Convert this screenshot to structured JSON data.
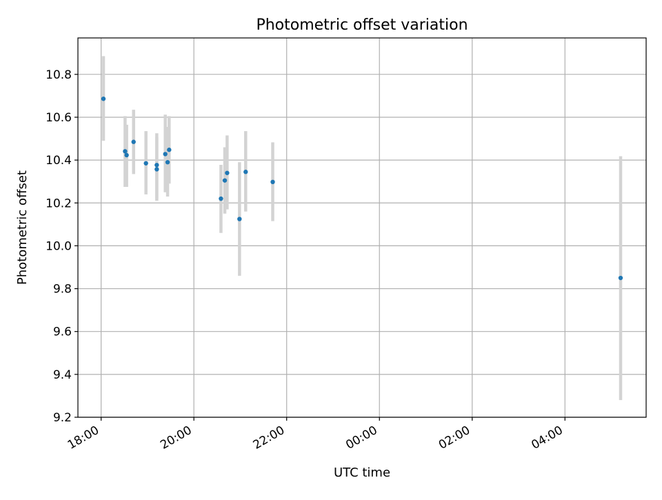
{
  "chart_data": {
    "type": "scatter",
    "title": "Photometric offset variation",
    "xlabel": "UTC time",
    "ylabel": "Photometric offset",
    "x_axis_type": "time",
    "xlim": [
      "17:30",
      "05:45"
    ],
    "ylim": [
      9.2,
      10.97
    ],
    "x_ticks": [
      "18:00",
      "20:00",
      "22:00",
      "00:00",
      "02:00",
      "04:00"
    ],
    "y_ticks": [
      9.2,
      9.4,
      9.6,
      9.8,
      10.0,
      10.2,
      10.4,
      10.6,
      10.8
    ],
    "grid": true,
    "colors": {
      "marker": "#1f77b4",
      "errorbar": "#d3d3d3",
      "grid": "#b0b0b0",
      "axes": "#000000"
    },
    "points": [
      {
        "x": "18:03",
        "y": 10.686,
        "yerr_low": 10.49,
        "yerr_high": 10.885
      },
      {
        "x": "18:31",
        "y": 10.441,
        "yerr_low": 10.275,
        "yerr_high": 10.605
      },
      {
        "x": "18:33",
        "y": 10.423,
        "yerr_low": 10.275,
        "yerr_high": 10.565
      },
      {
        "x": "18:42",
        "y": 10.485,
        "yerr_low": 10.335,
        "yerr_high": 10.635
      },
      {
        "x": "18:58",
        "y": 10.385,
        "yerr_low": 10.24,
        "yerr_high": 10.535
      },
      {
        "x": "19:12",
        "y": 10.377,
        "yerr_low": 10.22,
        "yerr_high": 10.525
      },
      {
        "x": "19:12",
        "y": 10.357,
        "yerr_low": 10.21,
        "yerr_high": 10.505
      },
      {
        "x": "19:23",
        "y": 10.428,
        "yerr_low": 10.25,
        "yerr_high": 10.612
      },
      {
        "x": "19:26",
        "y": 10.39,
        "yerr_low": 10.23,
        "yerr_high": 10.555
      },
      {
        "x": "19:28",
        "y": 10.448,
        "yerr_low": 10.29,
        "yerr_high": 10.605
      },
      {
        "x": "20:35",
        "y": 10.22,
        "yerr_low": 10.06,
        "yerr_high": 10.378
      },
      {
        "x": "20:40",
        "y": 10.305,
        "yerr_low": 10.15,
        "yerr_high": 10.46
      },
      {
        "x": "20:43",
        "y": 10.34,
        "yerr_low": 10.17,
        "yerr_high": 10.515
      },
      {
        "x": "20:59",
        "y": 10.125,
        "yerr_low": 9.86,
        "yerr_high": 10.39
      },
      {
        "x": "21:07",
        "y": 10.345,
        "yerr_low": 10.16,
        "yerr_high": 10.535
      },
      {
        "x": "21:42",
        "y": 10.298,
        "yerr_low": 10.115,
        "yerr_high": 10.483
      },
      {
        "x": "05:12",
        "y": 9.85,
        "yerr_low": 9.28,
        "yerr_high": 10.418
      }
    ]
  }
}
